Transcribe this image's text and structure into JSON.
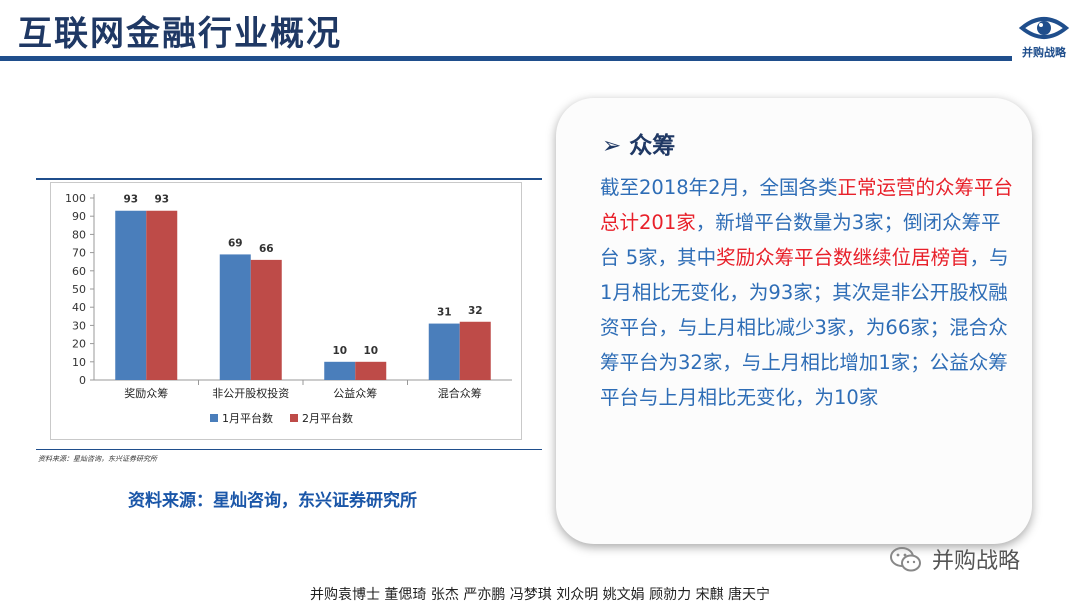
{
  "slide": {
    "title": "互联网金融行业概况",
    "logo_text": "并购战略"
  },
  "chart_data": {
    "type": "bar",
    "categories": [
      "奖励众筹",
      "非公开股权投资",
      "公益众筹",
      "混合众筹"
    ],
    "series": [
      {
        "name": "1月平台数",
        "values": [
          93,
          69,
          10,
          31
        ],
        "color": "#4a7ebb"
      },
      {
        "name": "2月平台数",
        "values": [
          93,
          66,
          10,
          32
        ],
        "color": "#be4b48"
      }
    ],
    "ylim": [
      0,
      100
    ],
    "yticks": [
      0,
      10,
      20,
      30,
      40,
      50,
      60,
      70,
      80,
      90,
      100
    ],
    "legend_position": "bottom",
    "source_note": "资料来源：星灿咨询，东兴证券研究所"
  },
  "source_caption": "资料来源：星灿咨询，东兴证券研究所",
  "card": {
    "heading_marker": "➢",
    "heading": "众筹",
    "segments": [
      {
        "text": "截至2018年2月，全国各类",
        "red": false
      },
      {
        "text": "正常运营的众筹平台总计201家",
        "red": true
      },
      {
        "text": "，新增平台数量为3家；倒闭众筹平台 5家，其中",
        "red": false
      },
      {
        "text": "奖励众筹平台数继续位居榜首",
        "red": true
      },
      {
        "text": "，与1月相比无变化，为93家；其次是非公开股权融资平台，与上月相比减少3家，为66家；混合众筹平台为32家，与上月相比增加1家；公益众筹平台与上月相比无变化，为10家",
        "red": false
      }
    ]
  },
  "watermark": "并购战略",
  "footer": "并购袁博士 董偲琦 张杰 严亦鹏 冯梦琪 刘众明 姚文娟 顾勍力 宋麒 唐天宁"
}
